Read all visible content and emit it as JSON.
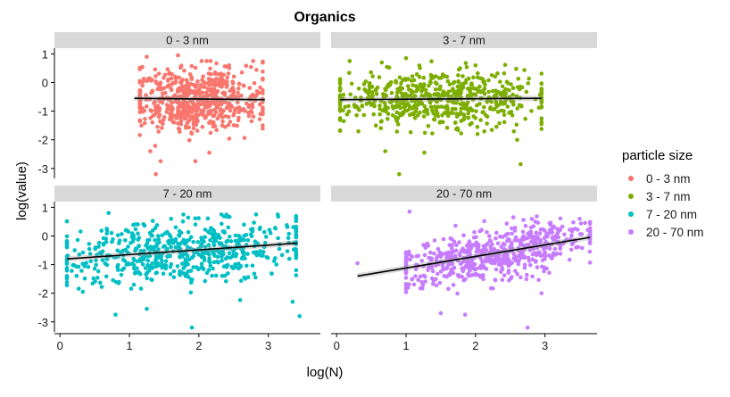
{
  "chart_data": {
    "type": "scatter",
    "title": "Organics",
    "xlabel": "log(N)",
    "ylabel": "log(value)",
    "xlim": [
      -0.08,
      3.75
    ],
    "ylim": [
      -3.35,
      1.2
    ],
    "xticks": [
      "0",
      "1",
      "2",
      "3"
    ],
    "yticks": [
      "1",
      "0",
      "-1",
      "-2",
      "-3"
    ],
    "grid": false,
    "legend": {
      "title": "particle size",
      "position": "right"
    },
    "panels": [
      {
        "name": "0 - 3 nm",
        "color": "#F8766D",
        "fit": {
          "x": [
            1.07,
            2.95
          ],
          "y": [
            -0.55,
            -0.6
          ]
        },
        "cloud": {
          "x_range": [
            1.15,
            2.92
          ],
          "x_center": 1.95,
          "y_center": -0.55,
          "y_sd": 0.55
        },
        "outliers": [
          [
            1.38,
            -3.2
          ],
          [
            1.45,
            -2.75
          ],
          [
            1.95,
            -2.75
          ],
          [
            2.15,
            -2.45
          ],
          [
            1.3,
            -2.4
          ],
          [
            1.25,
            0.9
          ],
          [
            1.7,
            0.95
          ]
        ]
      },
      {
        "name": "3 - 7 nm",
        "color": "#7CAE00",
        "fit": {
          "x": [
            0.05,
            2.95
          ],
          "y": [
            -0.6,
            -0.55
          ]
        },
        "cloud": {
          "x_range": [
            0.05,
            2.95
          ],
          "x_center": 1.5,
          "y_center": -0.55,
          "y_sd": 0.5
        },
        "outliers": [
          [
            0.9,
            -3.2
          ],
          [
            2.65,
            -2.85
          ],
          [
            0.7,
            -2.4
          ],
          [
            2.6,
            -2.0
          ],
          [
            1.0,
            0.85
          ],
          [
            0.65,
            0.7
          ],
          [
            2.0,
            0.6
          ]
        ]
      },
      {
        "name": "7 - 20 nm",
        "color": "#00BFC4",
        "fit": {
          "x": [
            0.1,
            3.42
          ],
          "y": [
            -0.8,
            -0.25
          ]
        },
        "cloud": {
          "x_range": [
            0.1,
            3.4
          ],
          "x_center": 1.75,
          "y_center": -0.55,
          "y_sd": 0.55
        },
        "outliers": [
          [
            1.9,
            -3.2
          ],
          [
            3.45,
            -2.8
          ],
          [
            0.8,
            -2.75
          ],
          [
            1.25,
            -2.55
          ],
          [
            0.7,
            0.8
          ],
          [
            1.6,
            0.6
          ],
          [
            3.35,
            -2.3
          ]
        ]
      },
      {
        "name": "20 - 70 nm",
        "color": "#C77CFF",
        "fit": {
          "x": [
            0.3,
            3.65
          ],
          "y": [
            -1.4,
            -0.05
          ]
        },
        "cloud": {
          "x_range": [
            1.0,
            3.65
          ],
          "x_center": 2.3,
          "y_center": -0.5,
          "y_sd": 0.45
        },
        "outliers": [
          [
            0.3,
            -0.95
          ],
          [
            2.75,
            -3.2
          ],
          [
            1.05,
            0.85
          ],
          [
            1.85,
            -2.75
          ],
          [
            1.5,
            -2.7
          ],
          [
            2.95,
            -2.0
          ],
          [
            3.5,
            0.6
          ]
        ]
      }
    ]
  }
}
